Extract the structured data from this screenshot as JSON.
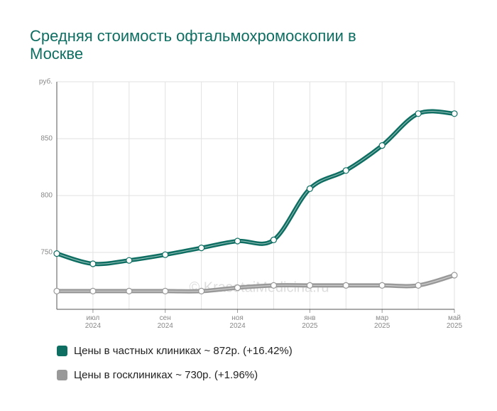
{
  "chart_data": {
    "type": "line",
    "title": "Средняя стоимость офтальмохромоскопии в Москве",
    "categories": [
      null,
      "июл 2024",
      null,
      "сен 2024",
      null,
      "ноя 2024",
      null,
      "янв 2025",
      null,
      "мар 2025",
      null,
      "май 2025"
    ],
    "series": [
      {
        "name": "Цены в частных клиниках ~ 872р. (+16.42%)",
        "color": "#0e6e62",
        "values": [
          749,
          740,
          743,
          748,
          754,
          760,
          761,
          806,
          822,
          844,
          872,
          872
        ]
      },
      {
        "name": "Цены в госклиниках ~ 730р. (+1.96%)",
        "color": "#999999",
        "values": [
          716,
          716,
          716,
          716,
          716,
          719,
          721,
          721,
          721,
          721,
          721,
          730
        ]
      }
    ],
    "ylim": [
      700,
      900
    ],
    "yticks": [
      750,
      800,
      850,
      {
        "value": 900,
        "label": "руб."
      }
    ],
    "grid": true,
    "watermark": "© KrasotaiMedicina.ru"
  }
}
